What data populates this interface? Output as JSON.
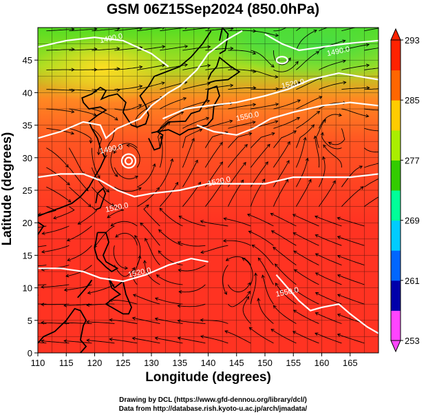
{
  "title": "GSM 06Z15Sep2024 (850.0hPa)",
  "x_axis": {
    "label": "Longitude (degrees)",
    "range": [
      110,
      170
    ],
    "ticks": [
      "110",
      "115",
      "120",
      "125",
      "130",
      "135",
      "140",
      "145",
      "150",
      "155",
      "160",
      "165"
    ]
  },
  "y_axis": {
    "label": "Latitude  (degrees)",
    "range": [
      0,
      50
    ],
    "ticks": [
      "0",
      "5",
      "10",
      "15",
      "20",
      "25",
      "30",
      "35",
      "40",
      "45"
    ]
  },
  "colorbar": {
    "labels": [
      "293",
      "285",
      "277",
      "269",
      "261",
      "253"
    ],
    "range": [
      253,
      293
    ],
    "colors": [
      "#ff44ff",
      "#0000aa",
      "#0066ff",
      "#00ccff",
      "#00ff99",
      "#33cc00",
      "#aaee00",
      "#ffcc00",
      "#ff6600",
      "#ff2200"
    ]
  },
  "contours": [
    {
      "label": "1490.0",
      "lon": 123,
      "lat": 48
    },
    {
      "label": "1490.0",
      "lon": 123,
      "lat": 31
    },
    {
      "label": "1520.0",
      "lon": 124,
      "lat": 22
    },
    {
      "label": "1520.0",
      "lon": 128,
      "lat": 12
    },
    {
      "label": "1520.0",
      "lon": 142,
      "lat": 26
    },
    {
      "label": "1520.0",
      "lon": 155,
      "lat": 41
    },
    {
      "label": "1490.0",
      "lon": 163,
      "lat": 46
    },
    {
      "label": "1550.0",
      "lon": 147,
      "lat": 36
    },
    {
      "label": "1550.0",
      "lon": 154,
      "lat": 9
    }
  ],
  "credits": {
    "line1": "Drawing by DCL (https://www.gfd-dennou.org/library/dcl/)",
    "line2": "Data from http://database.rish.kyoto-u.ac.jp/arch/jmadata/"
  }
}
